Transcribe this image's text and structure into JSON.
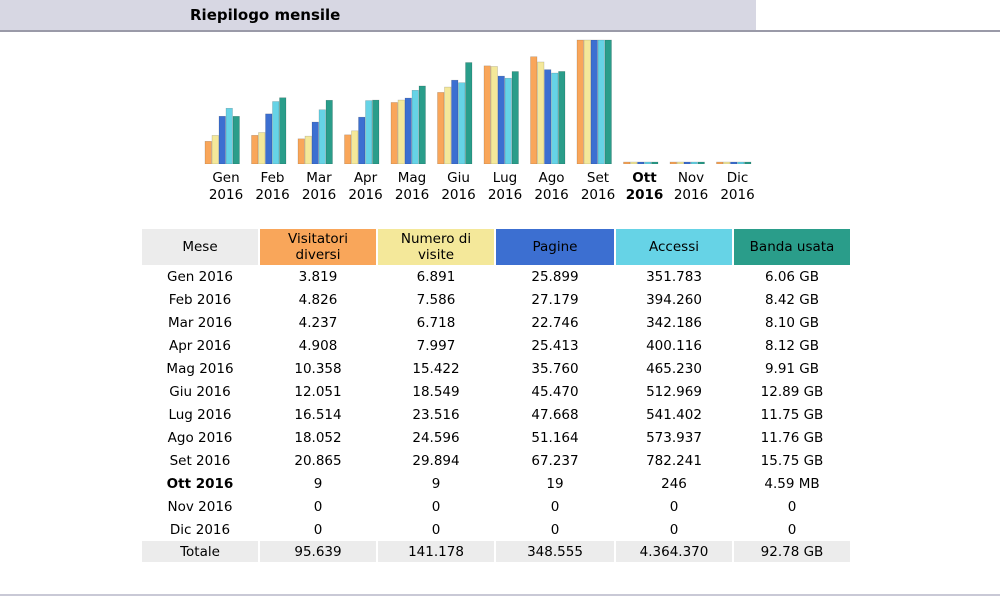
{
  "page": {
    "title": "Riepilogo mensile"
  },
  "colors": {
    "visitors": "#f9a65a",
    "visits": "#f4e89a",
    "pages": "#3c6fd1",
    "hits": "#66d3e6",
    "bandwidth": "#2a9d8a",
    "header_bg": "#d7d7e3"
  },
  "chart_data": {
    "type": "bar",
    "categories": [
      {
        "month": "Gen",
        "year": "2016"
      },
      {
        "month": "Feb",
        "year": "2016"
      },
      {
        "month": "Mar",
        "year": "2016"
      },
      {
        "month": "Apr",
        "year": "2016"
      },
      {
        "month": "Mag",
        "year": "2016"
      },
      {
        "month": "Giu",
        "year": "2016"
      },
      {
        "month": "Lug",
        "year": "2016"
      },
      {
        "month": "Ago",
        "year": "2016"
      },
      {
        "month": "Set",
        "year": "2016"
      },
      {
        "month": "Ott",
        "year": "2016",
        "current": true
      },
      {
        "month": "Nov",
        "year": "2016"
      },
      {
        "month": "Dic",
        "year": "2016"
      }
    ],
    "series": [
      {
        "name": "Visitatori diversi",
        "color": "#f9a65a",
        "values": [
          3819,
          4826,
          4237,
          4908,
          10358,
          12051,
          16514,
          18052,
          20865,
          9,
          0,
          0
        ]
      },
      {
        "name": "Numero di visite",
        "color": "#f4e89a",
        "values": [
          6891,
          7586,
          6718,
          7997,
          15422,
          18549,
          23516,
          24596,
          29894,
          9,
          0,
          0
        ]
      },
      {
        "name": "Pagine",
        "color": "#3c6fd1",
        "values": [
          25899,
          27179,
          22746,
          25413,
          35760,
          45470,
          47668,
          51164,
          67237,
          19,
          0,
          0
        ]
      },
      {
        "name": "Accessi",
        "color": "#66d3e6",
        "values": [
          351783,
          394260,
          342186,
          400116,
          465230,
          512969,
          541402,
          573937,
          782241,
          246,
          0,
          0
        ]
      },
      {
        "name": "Banda usata",
        "color": "#2a9d8a",
        "unit": "GB",
        "values": [
          6.06,
          8.42,
          8.1,
          8.12,
          9.91,
          12.89,
          11.75,
          11.76,
          15.75,
          0.0045,
          0,
          0
        ]
      }
    ]
  },
  "table": {
    "headers": [
      {
        "label": "Mese"
      },
      {
        "label": "Visitatori diversi"
      },
      {
        "label": "Numero di visite"
      },
      {
        "label": "Pagine"
      },
      {
        "label": "Accessi"
      },
      {
        "label": "Banda usata"
      }
    ],
    "rows": [
      {
        "month": "Gen 2016",
        "visitors": "3.819",
        "visits": "6.891",
        "pages": "25.899",
        "hits": "351.783",
        "bandwidth": "6.06 GB"
      },
      {
        "month": "Feb 2016",
        "visitors": "4.826",
        "visits": "7.586",
        "pages": "27.179",
        "hits": "394.260",
        "bandwidth": "8.42 GB"
      },
      {
        "month": "Mar 2016",
        "visitors": "4.237",
        "visits": "6.718",
        "pages": "22.746",
        "hits": "342.186",
        "bandwidth": "8.10 GB"
      },
      {
        "month": "Apr 2016",
        "visitors": "4.908",
        "visits": "7.997",
        "pages": "25.413",
        "hits": "400.116",
        "bandwidth": "8.12 GB"
      },
      {
        "month": "Mag 2016",
        "visitors": "10.358",
        "visits": "15.422",
        "pages": "35.760",
        "hits": "465.230",
        "bandwidth": "9.91 GB"
      },
      {
        "month": "Giu 2016",
        "visitors": "12.051",
        "visits": "18.549",
        "pages": "45.470",
        "hits": "512.969",
        "bandwidth": "12.89 GB"
      },
      {
        "month": "Lug 2016",
        "visitors": "16.514",
        "visits": "23.516",
        "pages": "47.668",
        "hits": "541.402",
        "bandwidth": "11.75 GB"
      },
      {
        "month": "Ago 2016",
        "visitors": "18.052",
        "visits": "24.596",
        "pages": "51.164",
        "hits": "573.937",
        "bandwidth": "11.76 GB"
      },
      {
        "month": "Set 2016",
        "visitors": "20.865",
        "visits": "29.894",
        "pages": "67.237",
        "hits": "782.241",
        "bandwidth": "15.75 GB"
      },
      {
        "month": "Ott 2016",
        "visitors": "9",
        "visits": "9",
        "pages": "19",
        "hits": "246",
        "bandwidth": "4.59 MB",
        "current": true
      },
      {
        "month": "Nov 2016",
        "visitors": "0",
        "visits": "0",
        "pages": "0",
        "hits": "0",
        "bandwidth": "0"
      },
      {
        "month": "Dic 2016",
        "visitors": "0",
        "visits": "0",
        "pages": "0",
        "hits": "0",
        "bandwidth": "0"
      }
    ],
    "total": {
      "month": "Totale",
      "visitors": "95.639",
      "visits": "141.178",
      "pages": "348.555",
      "hits": "4.364.370",
      "bandwidth": "92.78 GB"
    }
  }
}
